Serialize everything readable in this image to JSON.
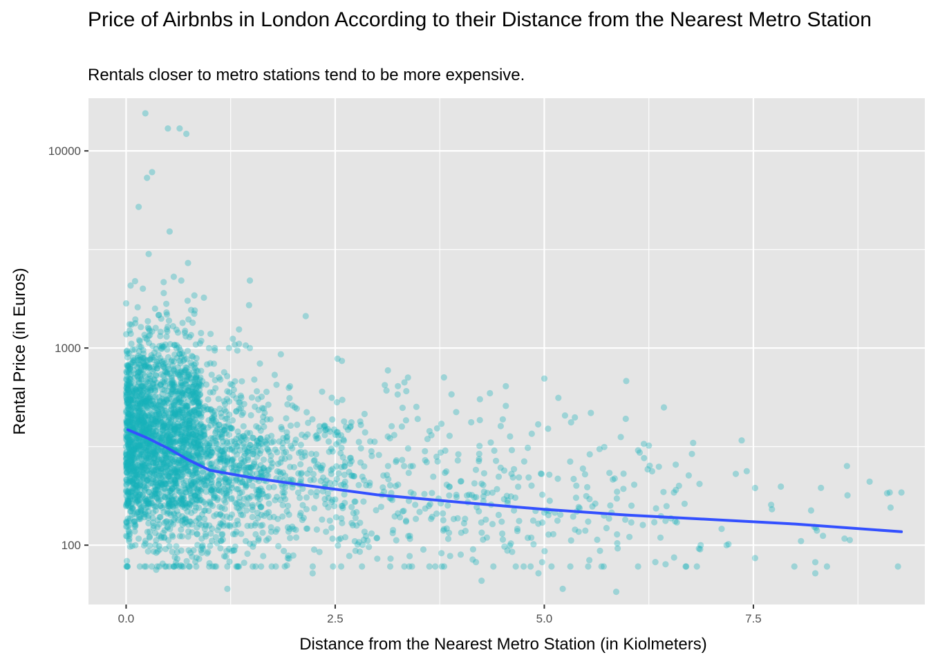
{
  "chart_data": {
    "type": "scatter",
    "title": "Price of Airbnbs in London According to their Distance from the Nearest Metro Station",
    "subtitle": "Rentals closer to metro stations tend to be more expensive.",
    "xlabel": "Distance from the Nearest Metro Station (in Kiolmeters)",
    "ylabel": "Rental Price (in Euros)",
    "xlim": [
      -0.45,
      9.55
    ],
    "ylim": [
      50,
      18500
    ],
    "y_scale": "log10",
    "x_ticks": [
      0,
      2.5,
      5,
      7.5
    ],
    "x_tick_labels": [
      "0.0",
      "2.5",
      "5.0",
      "7.5"
    ],
    "y_ticks": [
      100,
      1000,
      10000
    ],
    "y_tick_labels": [
      "100",
      "1000",
      "10000"
    ],
    "grid": true,
    "colors": {
      "points": "#17b3b9",
      "trend": "#3350ff",
      "panel": "#e5e5e5",
      "grid": "#ffffff"
    },
    "outliers": [
      [
        0.23,
        15500
      ],
      [
        0.5,
        13000
      ],
      [
        0.64,
        13000
      ],
      [
        0.72,
        12200
      ],
      [
        0.25,
        7300
      ],
      [
        0.31,
        7800
      ],
      [
        0.15,
        5200
      ],
      [
        0.52,
        3900
      ],
      [
        0.27,
        3000
      ],
      [
        0.74,
        2700
      ],
      [
        0.57,
        2300
      ],
      [
        0.66,
        2200
      ],
      [
        1.48,
        2200
      ],
      [
        0.2,
        2000
      ],
      [
        0.45,
        1900
      ],
      [
        1.47,
        1650
      ],
      [
        0.82,
        1550
      ],
      [
        0.93,
        1800
      ],
      [
        1.06,
        1000
      ],
      [
        1.23,
        1000
      ],
      [
        1.35,
        1050
      ],
      [
        1.48,
        1000
      ],
      [
        1.85,
        930
      ],
      [
        1.43,
        1030
      ],
      [
        2.58,
        860
      ],
      [
        3.13,
        770
      ],
      [
        3.8,
        710
      ],
      [
        4.54,
        640
      ],
      [
        5.0,
        700
      ],
      [
        5.98,
        680
      ],
      [
        4.35,
        590
      ],
      [
        4.23,
        550
      ],
      [
        5.32,
        420
      ],
      [
        6.43,
        500
      ],
      [
        7.36,
        340
      ],
      [
        7.52,
        195
      ],
      [
        8.89,
        210
      ],
      [
        9.13,
        185
      ],
      [
        9.27,
        185
      ],
      [
        9.14,
        155
      ],
      [
        8.19,
        150
      ],
      [
        8.24,
        82
      ],
      [
        8.24,
        72
      ],
      [
        8.38,
        78
      ],
      [
        7.52,
        86
      ],
      [
        1.21,
        60
      ],
      [
        5.22,
        60
      ],
      [
        5.86,
        58
      ],
      [
        4.93,
        72
      ],
      [
        4.25,
        66
      ],
      [
        3.39,
        88
      ],
      [
        2.82,
        78
      ],
      [
        2.23,
        72
      ],
      [
        0.36,
        75
      ],
      [
        6.45,
        80
      ],
      [
        7.18,
        100
      ],
      [
        8.59,
        108
      ],
      [
        6.87,
        100
      ],
      [
        7.29,
        230
      ],
      [
        6.78,
        330
      ],
      [
        6.61,
        200
      ],
      [
        6.55,
        185
      ],
      [
        6.25,
        320
      ],
      [
        6.37,
        250
      ]
    ],
    "dense_clusters": [
      {
        "x_range": [
          0.0,
          0.9
        ],
        "center_price": 330,
        "spread_log10": 0.26,
        "count": 2200
      },
      {
        "x_range": [
          0.9,
          1.6
        ],
        "center_price": 260,
        "spread_log10": 0.24,
        "count": 520
      },
      {
        "x_range": [
          1.6,
          2.6
        ],
        "center_price": 220,
        "spread_log10": 0.23,
        "count": 300
      },
      {
        "x_range": [
          2.6,
          4.0
        ],
        "center_price": 190,
        "spread_log10": 0.23,
        "count": 190
      },
      {
        "x_range": [
          4.0,
          5.5
        ],
        "center_price": 170,
        "spread_log10": 0.23,
        "count": 130
      },
      {
        "x_range": [
          5.5,
          7.0
        ],
        "center_price": 150,
        "spread_log10": 0.22,
        "count": 70
      },
      {
        "x_range": [
          7.0,
          9.3
        ],
        "center_price": 135,
        "spread_log10": 0.18,
        "count": 18
      }
    ],
    "trend_line": {
      "x": [
        0.02,
        0.25,
        0.5,
        0.75,
        1.0,
        1.5,
        2.0,
        3.0,
        4.0,
        5.0,
        6.0,
        7.0,
        8.0,
        9.27
      ],
      "y": [
        385,
        350,
        310,
        270,
        240,
        220,
        205,
        180,
        165,
        152,
        142,
        135,
        128,
        117
      ]
    }
  }
}
